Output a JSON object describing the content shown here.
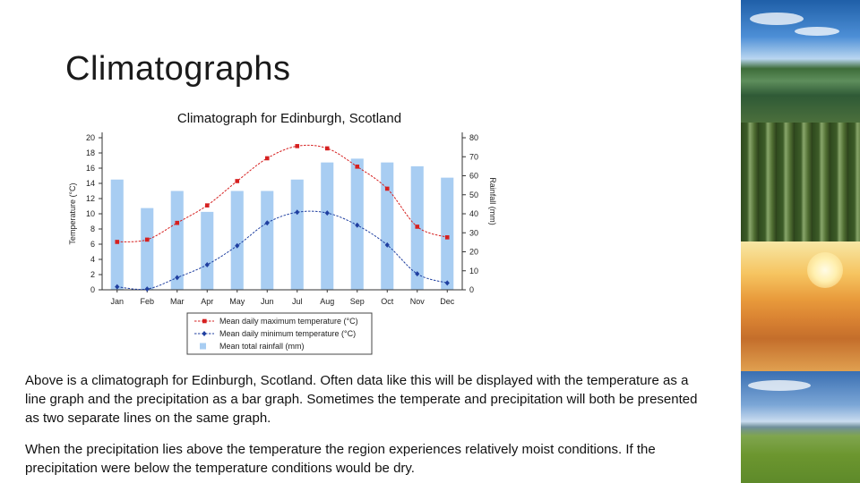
{
  "slide": {
    "title": "Climatographs",
    "paragraph1": "Above is a climatograph for Edinburgh, Scotland. Often data like this will be displayed with the temperature as a line graph and the precipitation as a bar graph. Sometimes the temperate and precipitation will both be presented as two separate lines on the same graph.",
    "paragraph2": "When the precipitation lies above the temperature the region experiences relatively moist conditions. If the precipitation were below the temperature conditions would be dry."
  },
  "photos": [
    "lake-forest-photo",
    "forest-photo",
    "desert-photo",
    "grassland-photo"
  ],
  "chart_data": {
    "type": "bar",
    "title": "Climatograph for Edinburgh, Scotland",
    "categories": [
      "Jan",
      "Feb",
      "Mar",
      "Apr",
      "May",
      "Jun",
      "Jul",
      "Aug",
      "Sep",
      "Oct",
      "Nov",
      "Dec"
    ],
    "ylabel_left": "Temperature (°C)",
    "ylabel_right": "Rainfall (mm)",
    "ylim_left": [
      0,
      20
    ],
    "ylim_right": [
      0,
      80
    ],
    "yticks_left": [
      "0",
      "2",
      "4",
      "6",
      "8",
      "10",
      "12",
      "14",
      "16",
      "18",
      "20"
    ],
    "yticks_right": [
      "0",
      "10",
      "20",
      "30",
      "40",
      "50",
      "60",
      "70",
      "80"
    ],
    "grid": false,
    "legend_position": "bottom",
    "series": [
      {
        "name": "Mean daily maximum temperature (°C)",
        "kind": "line",
        "axis": "left",
        "color": "#d62020",
        "values": [
          6.3,
          6.6,
          8.8,
          11.1,
          14.3,
          17.3,
          18.9,
          18.6,
          16.2,
          13.3,
          8.3,
          6.9
        ]
      },
      {
        "name": "Mean daily minimum temperature (°C)",
        "kind": "line",
        "axis": "left",
        "color": "#1f3fa0",
        "values": [
          0.4,
          0.1,
          1.6,
          3.3,
          5.8,
          8.8,
          10.2,
          10.1,
          8.5,
          5.9,
          2.1,
          0.9
        ]
      },
      {
        "name": "Mean total rainfall (mm)",
        "kind": "bar",
        "axis": "right",
        "color": "#a8cdf2",
        "values": [
          58,
          43,
          52,
          41,
          52,
          52,
          58,
          67,
          69,
          67,
          65,
          59
        ]
      }
    ]
  }
}
